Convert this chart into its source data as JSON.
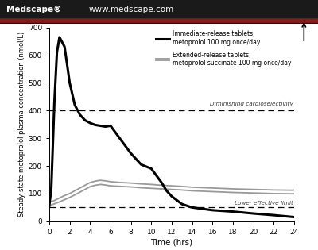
{
  "title_bar_text1": "Medscape®",
  "title_bar_text2": "www.medscape.com",
  "title_bar_bg": "#1a1a1a",
  "title_bar_fg": "#ffffff",
  "title_bar_accent": "#8B1a1a",
  "xlabel": "Time (hrs)",
  "ylabel": "Steady-state metoprolol plasma concentration (nmol/L)",
  "ylim": [
    0,
    700
  ],
  "xlim": [
    0,
    24
  ],
  "xticks": [
    0,
    2,
    4,
    6,
    8,
    10,
    12,
    14,
    16,
    18,
    20,
    22,
    24
  ],
  "yticks": [
    0,
    100,
    200,
    300,
    400,
    500,
    600,
    700
  ],
  "hline_upper": 400,
  "hline_lower": 50,
  "hline_upper_label": "Diminishing cardioselectivity",
  "hline_lower_label": "Lower effective limit",
  "legend_label_immediate": "Immediate-release tablets,\nmetoprolol 100 mg once/day",
  "legend_label_extended": "Extended-release tablets,\nmetoprolol succinate 100 mg once/day",
  "immediate_x": [
    0,
    0.2,
    0.5,
    0.75,
    1.0,
    1.5,
    2.0,
    2.5,
    3.0,
    3.5,
    4.0,
    4.5,
    5.0,
    5.5,
    6.0,
    7.0,
    8.0,
    9.0,
    10.0,
    10.5,
    11.0,
    11.5,
    12.0,
    13.0,
    14.0,
    16.0,
    18.0,
    20.0,
    22.0,
    24.0
  ],
  "immediate_y": [
    55,
    120,
    430,
    610,
    665,
    630,
    500,
    420,
    385,
    365,
    355,
    348,
    345,
    342,
    345,
    295,
    245,
    205,
    190,
    165,
    140,
    110,
    90,
    62,
    50,
    40,
    35,
    28,
    22,
    15
  ],
  "extended_x": [
    0,
    0.5,
    1.0,
    1.5,
    2.0,
    2.5,
    3.0,
    3.5,
    4.0,
    4.5,
    5.0,
    5.5,
    6.0,
    7.0,
    8.0,
    9.0,
    10.0,
    11.0,
    12.0,
    13.0,
    14.0,
    16.0,
    18.0,
    20.0,
    22.0,
    24.0
  ],
  "extended_y_upper": [
    68,
    75,
    84,
    93,
    100,
    110,
    120,
    130,
    140,
    145,
    148,
    146,
    143,
    140,
    138,
    135,
    133,
    130,
    128,
    126,
    123,
    120,
    117,
    115,
    113,
    112
  ],
  "extended_y_lower": [
    57,
    63,
    70,
    78,
    86,
    95,
    105,
    115,
    125,
    130,
    133,
    131,
    128,
    126,
    124,
    121,
    119,
    117,
    115,
    113,
    110,
    107,
    104,
    102,
    100,
    99
  ],
  "immediate_color": "#000000",
  "extended_color": "#999999",
  "plot_bg": "#ffffff"
}
